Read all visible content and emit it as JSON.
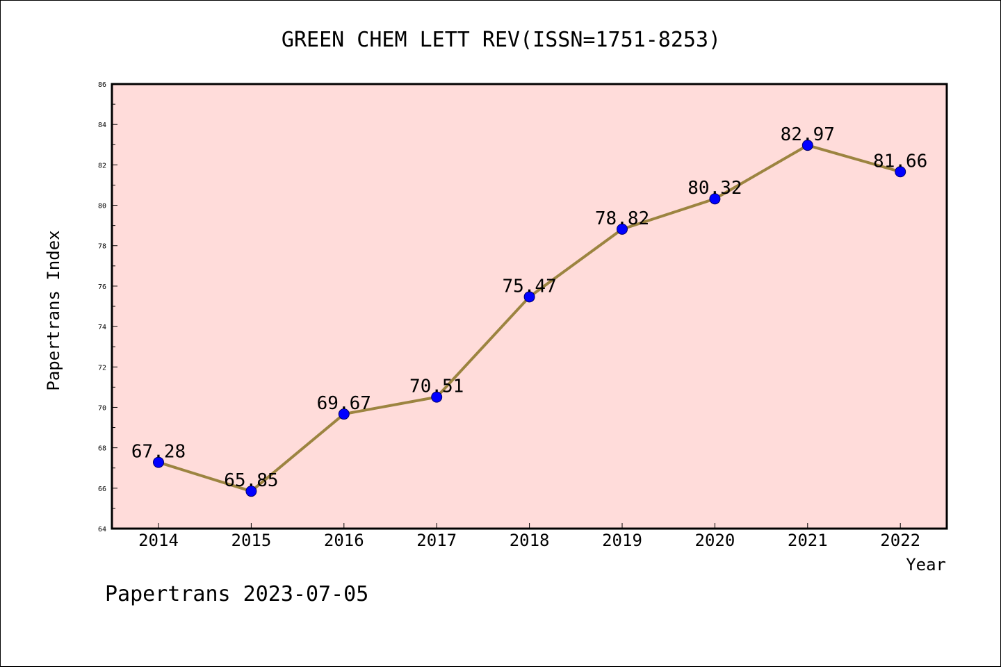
{
  "chart_data": {
    "type": "line",
    "title": "GREEN CHEM LETT REV(ISSN=1751-8253)",
    "xlabel": "Year",
    "ylabel": "Papertrans Index",
    "categories": [
      "2014",
      "2015",
      "2016",
      "2017",
      "2018",
      "2019",
      "2020",
      "2021",
      "2022"
    ],
    "values": [
      67.28,
      65.85,
      69.67,
      70.51,
      75.47,
      78.82,
      80.32,
      82.97,
      81.66
    ],
    "value_labels": [
      "67.28",
      "65.85",
      "69.67",
      "70.51",
      "75.47",
      "78.82",
      "80.32",
      "82.97",
      "81.66"
    ],
    "ylim": [
      64,
      86
    ],
    "yticks": [
      "64",
      "66",
      "68",
      "70",
      "72",
      "74",
      "76",
      "78",
      "80",
      "82",
      "84",
      "86"
    ],
    "grid": false,
    "colors": {
      "plot_background": "#ffdcda",
      "line": "#9c8440",
      "marker": "#0000ff"
    }
  },
  "footer": "Papertrans 2023-07-05"
}
